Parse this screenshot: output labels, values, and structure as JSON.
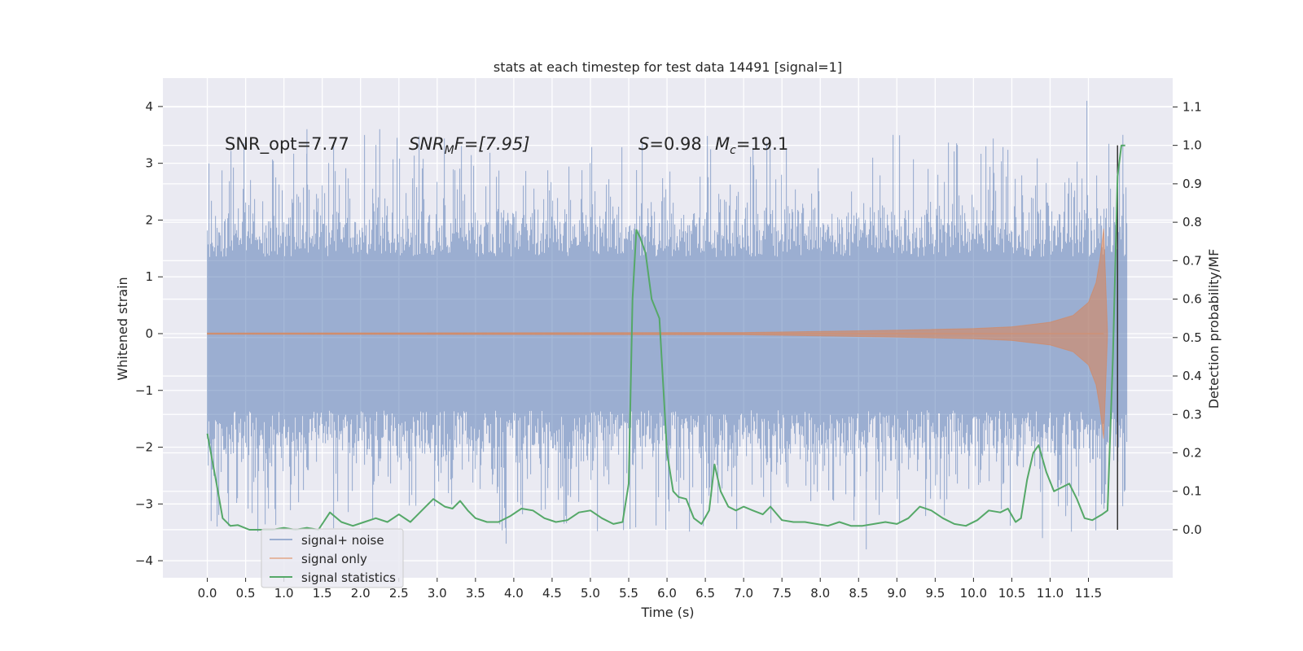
{
  "chart_data": {
    "type": "line",
    "title": "stats at each timestep for test data 14491 [signal=1]",
    "xlabel": "Time (s)",
    "ylabel": "Whitened strain",
    "y2label": "Detection probability/MF",
    "xlim": [
      -0.58,
      12.6
    ],
    "ylim": [
      -4.3,
      4.5
    ],
    "y2lim": [
      -0.125,
      1.175
    ],
    "xticks": [
      0.0,
      0.5,
      1.0,
      1.5,
      2.0,
      2.5,
      3.0,
      3.5,
      4.0,
      4.5,
      5.0,
      5.5,
      6.0,
      6.5,
      7.0,
      7.5,
      8.0,
      8.5,
      9.0,
      9.5,
      10.0,
      10.5,
      11.0,
      11.5
    ],
    "xtick_labels": [
      "0.0",
      "0.5",
      "1.0",
      "1.5",
      "2.0",
      "2.5",
      "3.0",
      "3.5",
      "4.0",
      "4.5",
      "5.0",
      "5.5",
      "6.0",
      "6.5",
      "7.0",
      "7.5",
      "8.0",
      "8.5",
      "9.0",
      "9.5",
      "10.0",
      "10.5",
      "11.0",
      "11.5"
    ],
    "yticks": [
      -4,
      -3,
      -2,
      -1,
      0,
      1,
      2,
      3,
      4
    ],
    "ytick_labels": [
      "−4",
      "−3",
      "−2",
      "−1",
      "0",
      "1",
      "2",
      "3",
      "4"
    ],
    "y2ticks": [
      0.0,
      0.1,
      0.2,
      0.3,
      0.4,
      0.5,
      0.6,
      0.7,
      0.8,
      0.9,
      1.0,
      1.1
    ],
    "y2tick_labels": [
      "0.0",
      "0.1",
      "0.2",
      "0.3",
      "0.4",
      "0.5",
      "0.6",
      "0.7",
      "0.8",
      "0.9",
      "1.0",
      "1.1"
    ],
    "grid": true,
    "legend_position": "lower-left",
    "annotations": {
      "snr_opt": "SNR_opt=7.77",
      "snr_mf_main": "SNR",
      "snr_mf_sub": "M",
      "snr_mf_rest": "F=[7.95]",
      "s_symbol": "S",
      "s_value": "=0.98",
      "mc_symbol": "M",
      "mc_sub": "c",
      "mc_value": "=19.1"
    },
    "vline_x": 11.88,
    "series": [
      {
        "name": "signal+ noise",
        "color": "#4c72b0",
        "duration": 12.0,
        "core_amplitude": 1.35,
        "typical_peak": 2.0,
        "max": 4.1,
        "min": -3.8
      },
      {
        "name": "signal only",
        "color": "#dd8452",
        "envelope_x": [
          0.0,
          7.0,
          8.0,
          9.0,
          10.0,
          10.5,
          11.0,
          11.3,
          11.5,
          11.6,
          11.65,
          11.7,
          11.75
        ],
        "envelope_y": [
          0.01,
          0.02,
          0.04,
          0.06,
          0.09,
          0.12,
          0.2,
          0.32,
          0.55,
          0.9,
          1.3,
          1.85,
          0.0
        ]
      },
      {
        "name": "signal statistics",
        "color": "#55a868",
        "x": [
          0.0,
          0.12,
          0.2,
          0.3,
          0.4,
          0.55,
          0.7,
          0.85,
          1.0,
          1.15,
          1.3,
          1.45,
          1.6,
          1.75,
          1.9,
          2.05,
          2.2,
          2.35,
          2.5,
          2.65,
          2.8,
          2.95,
          3.1,
          3.2,
          3.3,
          3.4,
          3.5,
          3.65,
          3.8,
          3.95,
          4.1,
          4.25,
          4.4,
          4.55,
          4.7,
          4.85,
          5.0,
          5.15,
          5.3,
          5.42,
          5.5,
          5.55,
          5.6,
          5.65,
          5.72,
          5.8,
          5.9,
          6.0,
          6.08,
          6.15,
          6.25,
          6.35,
          6.45,
          6.55,
          6.62,
          6.7,
          6.8,
          6.9,
          7.0,
          7.12,
          7.25,
          7.35,
          7.5,
          7.65,
          7.8,
          7.95,
          8.1,
          8.25,
          8.4,
          8.55,
          8.7,
          8.85,
          9.0,
          9.15,
          9.3,
          9.45,
          9.6,
          9.75,
          9.9,
          10.05,
          10.2,
          10.35,
          10.45,
          10.55,
          10.62,
          10.7,
          10.78,
          10.85,
          10.95,
          11.05,
          11.15,
          11.25,
          11.35,
          11.45,
          11.55,
          11.68,
          11.75,
          11.82,
          11.88,
          11.93,
          11.98
        ],
        "y": [
          0.25,
          0.12,
          0.03,
          0.01,
          0.012,
          0.0,
          0.0,
          0.0,
          0.005,
          0.0,
          0.005,
          0.0,
          0.045,
          0.02,
          0.01,
          0.02,
          0.03,
          0.02,
          0.04,
          0.02,
          0.05,
          0.08,
          0.06,
          0.055,
          0.075,
          0.05,
          0.03,
          0.02,
          0.02,
          0.035,
          0.055,
          0.05,
          0.03,
          0.02,
          0.025,
          0.045,
          0.05,
          0.03,
          0.015,
          0.02,
          0.12,
          0.6,
          0.78,
          0.76,
          0.72,
          0.6,
          0.55,
          0.2,
          0.1,
          0.085,
          0.08,
          0.03,
          0.015,
          0.05,
          0.17,
          0.1,
          0.06,
          0.05,
          0.06,
          0.05,
          0.04,
          0.06,
          0.025,
          0.02,
          0.02,
          0.015,
          0.01,
          0.02,
          0.01,
          0.01,
          0.015,
          0.02,
          0.015,
          0.03,
          0.06,
          0.05,
          0.03,
          0.015,
          0.01,
          0.025,
          0.05,
          0.045,
          0.055,
          0.02,
          0.03,
          0.13,
          0.2,
          0.22,
          0.15,
          0.1,
          0.11,
          0.12,
          0.08,
          0.03,
          0.025,
          0.04,
          0.05,
          0.45,
          0.92,
          1.0,
          1.0
        ]
      }
    ]
  }
}
